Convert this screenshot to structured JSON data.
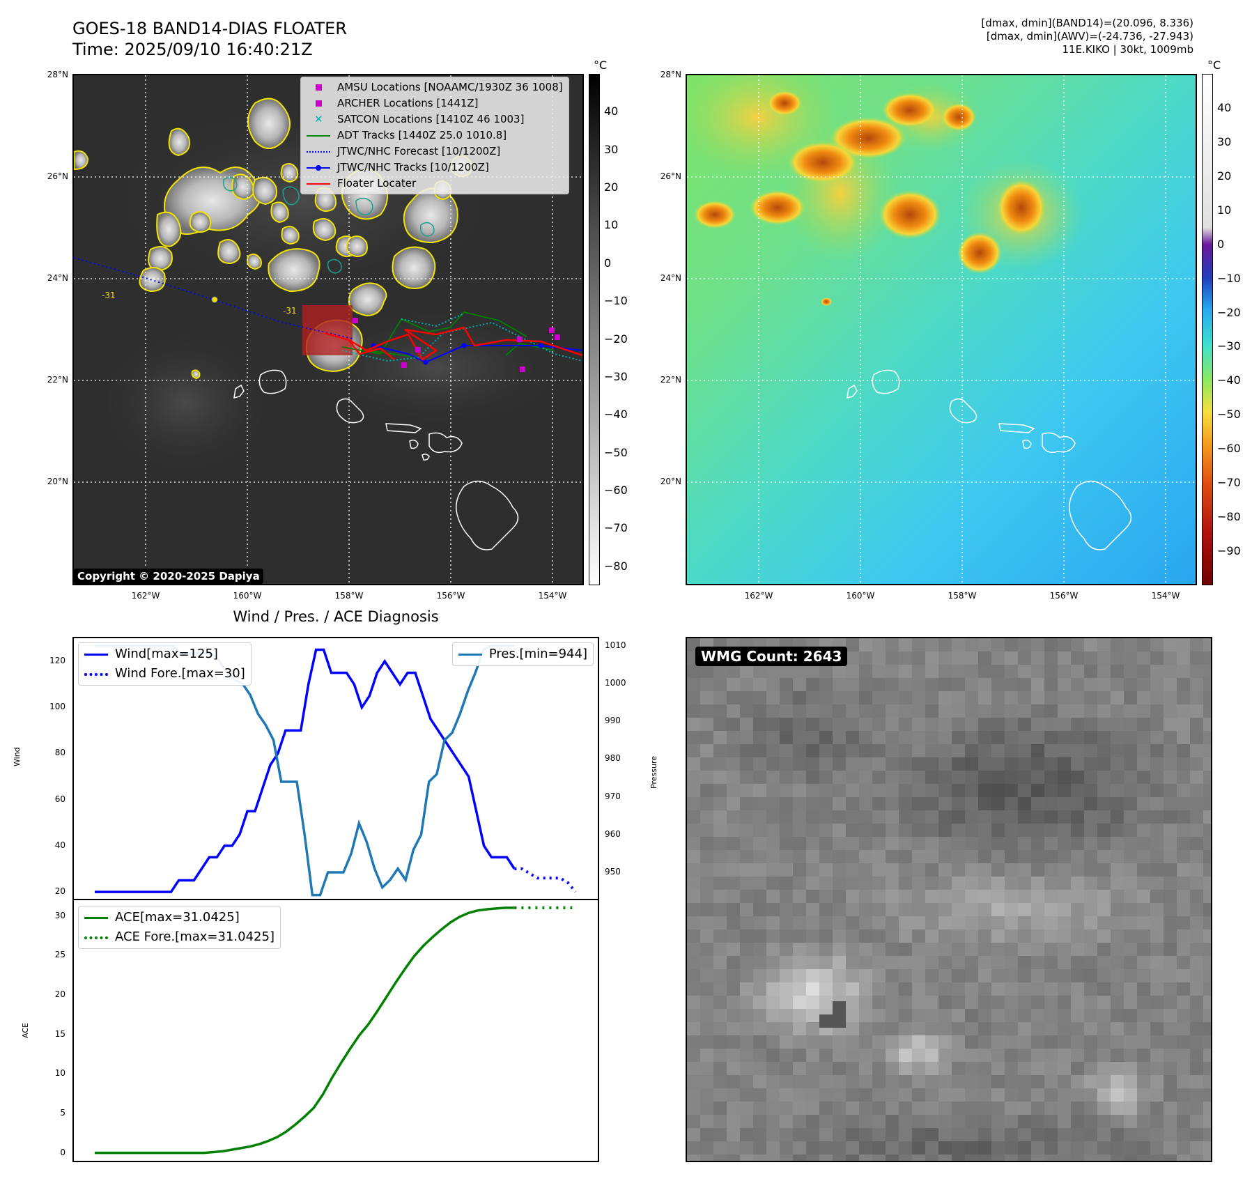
{
  "header": {
    "title": "GOES-18 BAND14-DIAS FLOATER",
    "time": "Time: 2025/09/10 16:40:21Z",
    "info_line1": "[dmax, dmin](BAND14)=(20.096, 8.336)",
    "info_line2": "[dmax, dmin](AWV)=(-24.736, -27.943)",
    "info_line3": "11E.KIKO | 30kt, 1009mb"
  },
  "map": {
    "lat_labels": [
      "28°N",
      "26°N",
      "24°N",
      "22°N",
      "20°N"
    ],
    "lon_labels": [
      "162°W",
      "160°W",
      "158°W",
      "156°W",
      "154°W"
    ],
    "copyright": "Copyright © 2020-2025 Dapiya",
    "contour_label": "-31",
    "legend": [
      {
        "label": "AMSU Locations [NOAAMC/1930Z 36 1008]",
        "color": "#cc00cc",
        "style": "square"
      },
      {
        "label": "ARCHER Locations [1441Z]",
        "color": "#cc00cc",
        "style": "square"
      },
      {
        "label": "SATCON Locations [1410Z 46 1003]",
        "color": "#00b3b3",
        "style": "x"
      },
      {
        "label": "ADT Tracks [1440Z 25.0 1010.8]",
        "color": "#008000",
        "style": "line"
      },
      {
        "label": "JTWC/NHC Forecast [10/1200Z]",
        "color": "#0000ff",
        "style": "dotted"
      },
      {
        "label": "JTWC/NHC Tracks [10/1200Z]",
        "color": "#0000ff",
        "style": "line-dot"
      },
      {
        "label": "Floater Locater",
        "color": "#ff0000",
        "style": "line"
      }
    ]
  },
  "colorbar_ir": {
    "unit": "°C",
    "ticks": [
      "40",
      "30",
      "20",
      "10",
      "0",
      "−10",
      "−20",
      "−30",
      "−40",
      "−50",
      "−60",
      "−70",
      "−80"
    ],
    "range": [
      -85,
      50
    ]
  },
  "colorbar_wv": {
    "unit": "°C",
    "ticks": [
      "40",
      "30",
      "20",
      "10",
      "0",
      "−10",
      "−20",
      "−30",
      "−40",
      "−50",
      "−60",
      "−70",
      "−80",
      "−90"
    ],
    "range": [
      -100,
      50
    ]
  },
  "diagnosis": {
    "title": "Wind / Pres. / ACE Diagnosis",
    "wind_axis_label": "Wind",
    "pressure_axis_label": "Pressure",
    "ace_axis_label": "ACE",
    "wind_ticks": [
      "120",
      "100",
      "80",
      "60",
      "40",
      "20"
    ],
    "pressure_ticks": [
      "1010",
      "1000",
      "990",
      "980",
      "970",
      "960",
      "950"
    ],
    "ace_ticks": [
      "30",
      "25",
      "20",
      "15",
      "10",
      "5",
      "0"
    ],
    "legend_wind": "Wind[max=125]",
    "legend_wind_fore": "Wind Fore.[max=30]",
    "legend_pres": "Pres.[min=944]",
    "legend_ace": "ACE[max=31.0425]",
    "legend_ace_fore": "ACE Fore.[max=31.0425]"
  },
  "wmg": {
    "label": "WMG Count: 2643"
  },
  "chart_data": [
    {
      "type": "line",
      "title": "Wind / Pres. / ACE Diagnosis",
      "ylabel": "Wind",
      "ylim": [
        17,
        130
      ],
      "series": [
        {
          "name": "Wind[max=125]",
          "color": "#0000ff",
          "values": [
            20,
            20,
            20,
            20,
            20,
            20,
            20,
            20,
            20,
            20,
            20,
            25,
            25,
            25,
            30,
            35,
            35,
            40,
            40,
            45,
            55,
            55,
            65,
            75,
            80,
            90,
            90,
            90,
            110,
            125,
            125,
            115,
            115,
            115,
            110,
            100,
            105,
            115,
            120,
            115,
            110,
            115,
            115,
            105,
            95,
            90,
            85,
            80,
            75,
            70,
            55,
            40,
            35,
            35,
            35,
            30
          ]
        },
        {
          "name": "Wind Fore.[max=30]",
          "color": "#0000ff",
          "style": "dotted",
          "values": [
            30,
            30,
            28,
            26,
            26,
            26,
            26,
            24,
            20
          ]
        }
      ]
    },
    {
      "type": "line",
      "ylabel": "Pressure",
      "ylim": [
        943,
        1012
      ],
      "series": [
        {
          "name": "Pres.[min=944]",
          "color": "#1f77b4",
          "values": [
            1010,
            1010,
            1010,
            1010,
            1010,
            1010,
            1010,
            1010,
            1010,
            1010,
            1010,
            1008,
            1008,
            1008,
            1008,
            1008,
            1006,
            1003,
            1001,
            1000,
            997,
            992,
            989,
            985,
            974,
            974,
            974,
            960,
            944,
            944,
            950,
            950,
            950,
            955,
            963,
            958,
            951,
            946,
            948,
            951,
            948,
            956,
            960,
            974,
            976,
            985,
            987,
            992,
            998,
            1003,
            1009,
            1010,
            1010,
            1010,
            1010
          ]
        }
      ]
    },
    {
      "type": "line",
      "ylabel": "ACE",
      "ylim": [
        -1,
        32
      ],
      "series": [
        {
          "name": "ACE[max=31.0425]",
          "color": "#008000",
          "values": [
            0,
            0,
            0,
            0,
            0,
            0,
            0,
            0,
            0,
            0,
            0,
            0,
            0,
            0.1,
            0.2,
            0.4,
            0.6,
            0.8,
            1.1,
            1.5,
            2.0,
            2.7,
            3.6,
            4.6,
            5.7,
            7.4,
            9.5,
            11.4,
            13.2,
            14.9,
            16.3,
            18.0,
            19.8,
            21.6,
            23.3,
            24.9,
            26.2,
            27.3,
            28.3,
            29.2,
            29.9,
            30.4,
            30.7,
            30.85,
            30.95,
            31.0425,
            31.0425
          ]
        },
        {
          "name": "ACE Fore.[max=31.0425]",
          "color": "#008000",
          "style": "dotted",
          "values": [
            31.0425,
            31.0425,
            31.0425,
            31.0425,
            31.0425,
            31.0425,
            31.0425,
            31.0425,
            31.0425,
            31.0425,
            31.0425
          ]
        }
      ]
    }
  ]
}
